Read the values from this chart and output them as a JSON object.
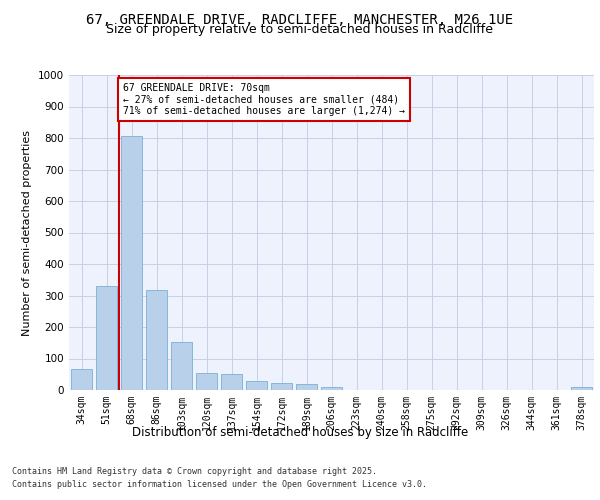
{
  "title_line1": "67, GREENDALE DRIVE, RADCLIFFE, MANCHESTER, M26 1UE",
  "title_line2": "Size of property relative to semi-detached houses in Radcliffe",
  "xlabel": "Distribution of semi-detached houses by size in Radcliffe",
  "ylabel": "Number of semi-detached properties",
  "categories": [
    "34sqm",
    "51sqm",
    "68sqm",
    "86sqm",
    "103sqm",
    "120sqm",
    "137sqm",
    "154sqm",
    "172sqm",
    "189sqm",
    "206sqm",
    "223sqm",
    "240sqm",
    "258sqm",
    "275sqm",
    "292sqm",
    "309sqm",
    "326sqm",
    "344sqm",
    "361sqm",
    "378sqm"
  ],
  "values": [
    68,
    330,
    805,
    318,
    152,
    55,
    50,
    30,
    22,
    18,
    10,
    0,
    0,
    0,
    0,
    0,
    0,
    0,
    0,
    0,
    8
  ],
  "bar_color": "#b8d0ea",
  "bar_edge_color": "#7aafd4",
  "vline_position": 1.5,
  "annotation_text": "67 GREENDALE DRIVE: 70sqm\n← 27% of semi-detached houses are smaller (484)\n71% of semi-detached houses are larger (1,274) →",
  "annotation_box_facecolor": "#ffffff",
  "annotation_box_edgecolor": "#cc0000",
  "vline_color": "#cc0000",
  "footer_line1": "Contains HM Land Registry data © Crown copyright and database right 2025.",
  "footer_line2": "Contains public sector information licensed under the Open Government Licence v3.0.",
  "bg_color": "#eef2fc",
  "grid_color": "#c8d0e8",
  "ylim": [
    0,
    1000
  ],
  "yticks": [
    0,
    100,
    200,
    300,
    400,
    500,
    600,
    700,
    800,
    900,
    1000
  ],
  "title1_fontsize": 10,
  "title2_fontsize": 9,
  "ylabel_fontsize": 8,
  "xlabel_fontsize": 8.5,
  "tick_fontsize": 7,
  "ann_fontsize": 7,
  "footer_fontsize": 6
}
